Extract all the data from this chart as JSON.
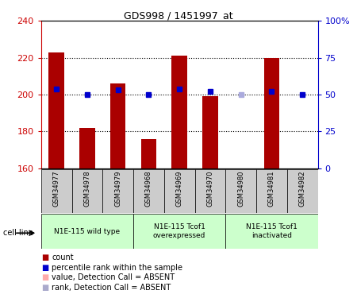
{
  "title": "GDS998 / 1451997_at",
  "samples": [
    "GSM34977",
    "GSM34978",
    "GSM34979",
    "GSM34968",
    "GSM34969",
    "GSM34970",
    "GSM34980",
    "GSM34981",
    "GSM34982"
  ],
  "count_values": [
    223,
    182,
    206,
    176,
    221,
    199,
    160,
    220,
    160
  ],
  "count_colors": [
    "#aa0000",
    "#aa0000",
    "#aa0000",
    "#aa0000",
    "#aa0000",
    "#aa0000",
    "#ffaaaa",
    "#aa0000",
    "#aa0000"
  ],
  "rank_values": [
    54,
    50,
    53,
    50,
    54,
    52,
    50,
    52,
    50
  ],
  "rank_colors": [
    "#0000cc",
    "#0000cc",
    "#0000cc",
    "#0000cc",
    "#0000cc",
    "#0000cc",
    "#aaaadd",
    "#0000cc",
    "#0000cc"
  ],
  "ylim_left": [
    160,
    240
  ],
  "ylim_right": [
    0,
    100
  ],
  "yticks_left": [
    160,
    180,
    200,
    220,
    240
  ],
  "yticks_right": [
    0,
    25,
    50,
    75,
    100
  ],
  "ytick_labels_right": [
    "0",
    "25",
    "50",
    "75",
    "100%"
  ],
  "bar_width": 0.5,
  "groups": [
    {
      "label": "N1E-115 wild type",
      "indices": [
        0,
        1,
        2
      ]
    },
    {
      "label": "N1E-115 Tcof1\noverexpressed",
      "indices": [
        3,
        4,
        5
      ]
    },
    {
      "label": "N1E-115 Tcof1\ninactivated",
      "indices": [
        6,
        7,
        8
      ]
    }
  ],
  "group_bg_color": "#ccffcc",
  "sample_bg_color": "#cccccc",
  "legend_items": [
    {
      "color": "#aa0000",
      "label": "count"
    },
    {
      "color": "#0000cc",
      "label": "percentile rank within the sample"
    },
    {
      "color": "#ffaaaa",
      "label": "value, Detection Call = ABSENT"
    },
    {
      "color": "#aaaacc",
      "label": "rank, Detection Call = ABSENT"
    }
  ],
  "cell_line_label": "cell line",
  "grid_lines": [
    180,
    200,
    220
  ],
  "fig_bg": "#ffffff"
}
